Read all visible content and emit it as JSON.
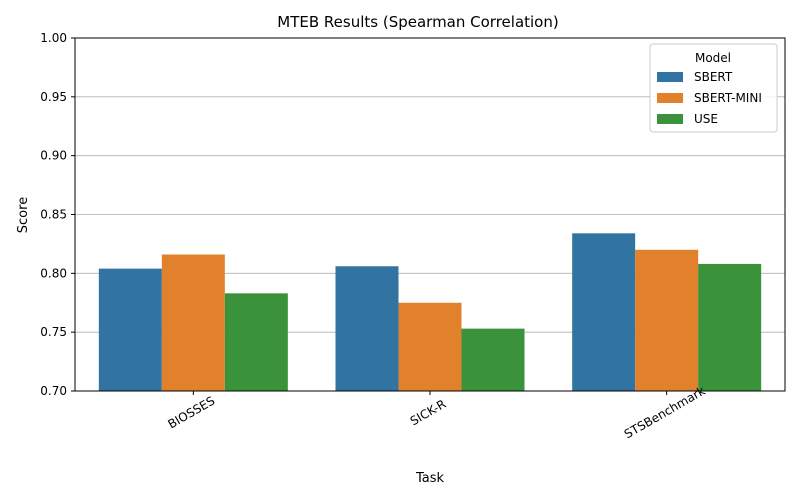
{
  "chart_data": {
    "type": "bar",
    "title": "MTEB Results (Spearman Correlation)",
    "xlabel": "Task",
    "ylabel": "Score",
    "ylim": [
      0.7,
      1.0
    ],
    "yticks": [
      "0.70",
      "0.75",
      "0.80",
      "0.85",
      "0.90",
      "0.95",
      "1.00"
    ],
    "ytick_values": [
      0.7,
      0.75,
      0.8,
      0.85,
      0.9,
      0.95,
      1.0
    ],
    "grid": "horizontal",
    "categories": [
      "BIOSSES",
      "SICK-R",
      "STSBenchmark"
    ],
    "legend": {
      "title": "Model",
      "position": "top-right"
    },
    "series": [
      {
        "name": "SBERT",
        "color": "#3274a1",
        "values": [
          0.804,
          0.806,
          0.834
        ]
      },
      {
        "name": "SBERT-MINI",
        "color": "#e1812c",
        "values": [
          0.816,
          0.775,
          0.82
        ]
      },
      {
        "name": "USE",
        "color": "#3a923a",
        "values": [
          0.783,
          0.753,
          0.808
        ]
      }
    ]
  }
}
